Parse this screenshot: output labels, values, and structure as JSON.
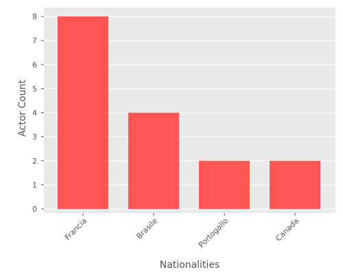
{
  "chart_data": {
    "type": "bar",
    "categories": [
      "Francia",
      "Brasile",
      "Portogallo",
      "Canada"
    ],
    "values": [
      8,
      4,
      2,
      2
    ],
    "xlabel": "Nationalities",
    "ylabel": "Actor Count",
    "ylim": [
      0,
      8.3
    ],
    "yticks": [
      0,
      1,
      2,
      3,
      4,
      5,
      6,
      7,
      8
    ],
    "grid": true,
    "x_tick_rotation_deg": -45,
    "colors": {
      "bar": "#ff5555",
      "plot_background": "#e9e9e9",
      "grid": "#ffffff",
      "text": "#555555"
    }
  }
}
